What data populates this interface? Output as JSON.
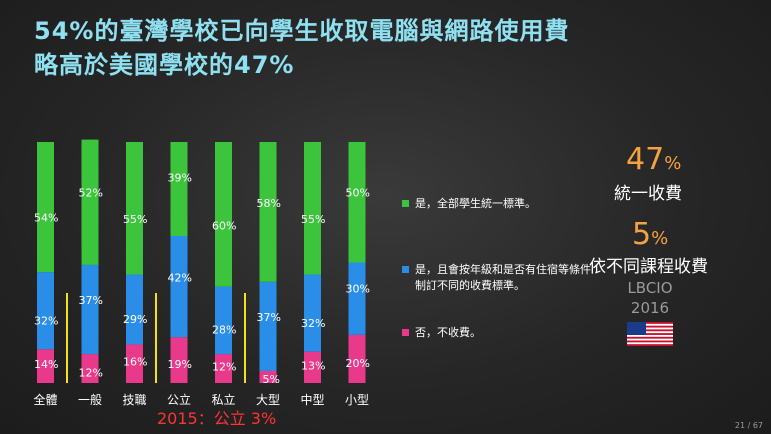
{
  "title": {
    "line1": "54%的臺灣學校已向學生收取電腦與網路使用費",
    "line2": "略高於美國學校的47%"
  },
  "chart_data": {
    "type": "bar",
    "stacked": true,
    "percent_scale": true,
    "categories": [
      "全體",
      "一般",
      "技職",
      "公立",
      "私立",
      "大型",
      "中型",
      "小型"
    ],
    "series": [
      {
        "name": "否，不收費。",
        "values": [
          14,
          12,
          16,
          19,
          12,
          5,
          13,
          20
        ],
        "color": "#e8398a"
      },
      {
        "name": "是，且會按年級和是否有住宿等條件制訂不同的收費標準。",
        "values": [
          32,
          37,
          29,
          42,
          28,
          37,
          32,
          30
        ],
        "color": "#2a8ee8"
      },
      {
        "name": "是，全部學生統一標準。",
        "values": [
          54,
          52,
          55,
          39,
          60,
          58,
          55,
          50
        ],
        "color": "#3cc43c"
      }
    ],
    "ylim": [
      0,
      100
    ],
    "legend_position": "right",
    "highlight_separators": "yellow lines between groups"
  },
  "side": {
    "stat1_value": "47",
    "stat1_unit": "%",
    "stat1_label": "統一收費",
    "stat2_value": "5",
    "stat2_unit": "%",
    "stat2_label": "依不同課程收費",
    "source_line1": "LBCIO",
    "source_line2": "2016",
    "flag_icon": "us-flag-icon"
  },
  "note": "2015：公立 3%",
  "page": "21 / 67"
}
